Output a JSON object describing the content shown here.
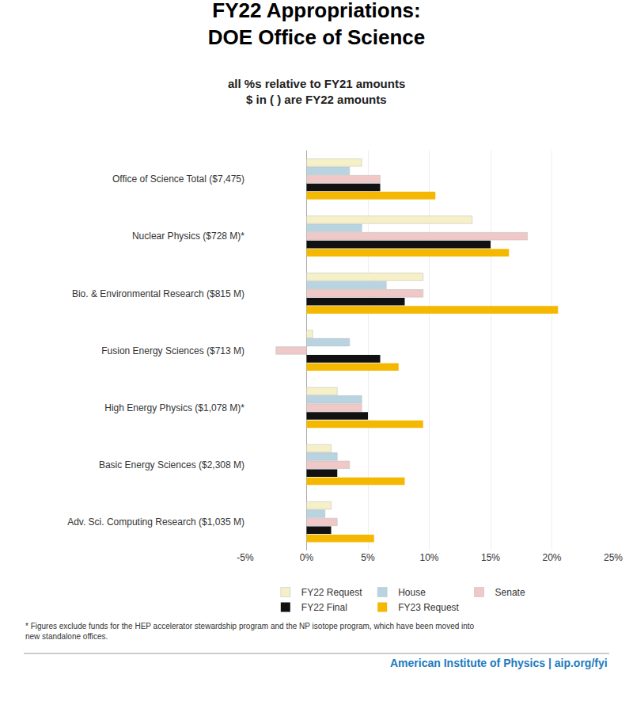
{
  "chart_data": {
    "type": "bar",
    "orientation": "horizontal",
    "title": "FY22 Appropriations:\nDOE Office of Science",
    "subtitle": "all %s relative to FY21 amounts\n$ in ( ) are FY22 amounts",
    "categories": [
      "Office of Science Total ($7,475)",
      "Nuclear Physics ($728 M)*",
      "Bio. & Environmental Research ($815 M)",
      "Fusion Energy Sciences ($713 M)",
      "High Energy Physics ($1,078 M)*",
      "Basic Energy Sciences ($2,308 M)",
      "Adv. Sci. Computing Research ($1,035 M)"
    ],
    "series": [
      {
        "name": "FY22 Request",
        "color": "#f5f0c8",
        "values": [
          4.5,
          13.5,
          9.5,
          0.5,
          2.5,
          2.0,
          2.0
        ]
      },
      {
        "name": "House",
        "color": "#b8d4e0",
        "values": [
          3.5,
          4.5,
          6.5,
          3.5,
          4.5,
          2.5,
          1.5
        ]
      },
      {
        "name": "Senate",
        "color": "#f0c8c8",
        "values": [
          6.0,
          18.0,
          9.5,
          -2.5,
          4.5,
          3.5,
          2.5
        ]
      },
      {
        "name": "FY22 Final",
        "color": "#111111",
        "values": [
          6.0,
          15.0,
          8.0,
          6.0,
          5.0,
          2.5,
          2.0
        ]
      },
      {
        "name": "FY23 Request",
        "color": "#f5b800",
        "values": [
          10.5,
          16.5,
          20.5,
          7.5,
          9.5,
          8.0,
          5.5
        ]
      }
    ],
    "xlim": [
      -5,
      25
    ],
    "xticks": [
      {
        "value": -5,
        "label": "-5%"
      },
      {
        "value": 0,
        "label": "0%"
      },
      {
        "value": 5,
        "label": "5%"
      },
      {
        "value": 10,
        "label": "10%"
      },
      {
        "value": 15,
        "label": "15%"
      },
      {
        "value": 20,
        "label": "20%"
      },
      {
        "value": 25,
        "label": "25%"
      }
    ],
    "grid": true,
    "legend": "bottom",
    "annotations": [
      "* Figures exclude funds for the HEP accelerator stewardship program and the NP isotope program, which have been moved into\nnew standalone offices.",
      "American Institute of Physics | aip.org/fyi"
    ]
  }
}
